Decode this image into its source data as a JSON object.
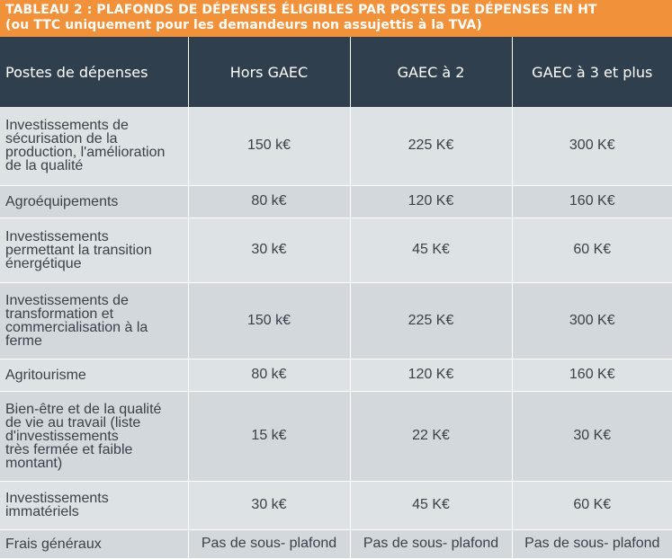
{
  "title": {
    "line1": "TABLEAU 2 : PLAFONDS DE DÉPENSES ÉLIGIBLES PAR POSTES DE DÉPENSES EN HT",
    "line2": "(ou TTC uniquement pour les demandeurs non assujettis à la TVA)"
  },
  "colors": {
    "title_bg": "#f1913a",
    "header_bg": "#2f3f4e",
    "row_bg": "#dde2e5"
  },
  "table": {
    "headers": [
      "Postes de dépenses",
      "Hors GAEC",
      "GAEC à 2",
      "GAEC à 3 et plus"
    ],
    "rows": [
      {
        "label": "Investissements de\nsécurisation de la\nproduction, l'amélioration\nde la qualité",
        "hors_gaec": "150 k€",
        "gaec_2": "225 K€",
        "gaec_3": "300 K€"
      },
      {
        "label": "Agroéquipements",
        "hors_gaec": "80 k€",
        "gaec_2": "120 K€",
        "gaec_3": "160 K€"
      },
      {
        "label": "Investissements\npermettant la transition\nénergétique",
        "hors_gaec": "30 k€",
        "gaec_2": "45 K€",
        "gaec_3": "60 K€"
      },
      {
        "label": "Investissements de\ntransformation et\ncommercialisation à la\nferme",
        "hors_gaec": "150 k€",
        "gaec_2": "225 K€",
        "gaec_3": "300 K€"
      },
      {
        "label": "Agritourisme",
        "hors_gaec": "80 k€",
        "gaec_2": "120 K€",
        "gaec_3": "160 K€"
      },
      {
        "label": "Bien-être et de la qualité\nde vie au travail (liste\nd'investissements\ntrès fermée et faible\nmontant)",
        "hors_gaec": "15 k€",
        "gaec_2": "22 K€",
        "gaec_3": "30 K€"
      },
      {
        "label": "Investissements\nimmatériels",
        "hors_gaec": "30 k€",
        "gaec_2": "45 K€",
        "gaec_3": "60 K€"
      },
      {
        "label": "Frais généraux",
        "hors_gaec": "Pas de sous- plafond",
        "gaec_2": "Pas de sous- plafond",
        "gaec_3": "Pas de sous- plafond"
      }
    ]
  }
}
